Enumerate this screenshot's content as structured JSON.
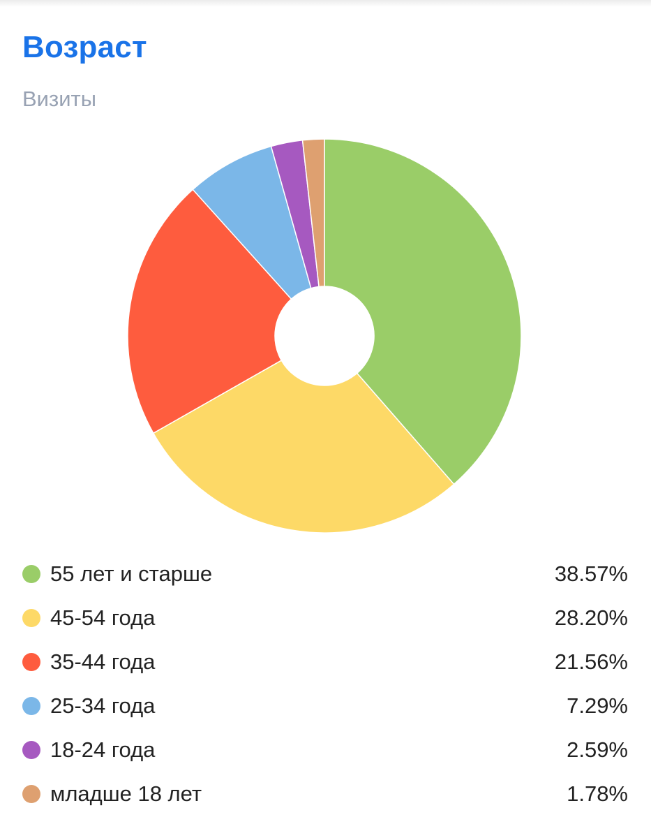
{
  "title": "Возраст",
  "subtitle": "Визиты",
  "chart_data": {
    "type": "pie",
    "title": "Возраст",
    "subtitle": "Визиты",
    "donut": true,
    "legend_position": "bottom",
    "slices": [
      {
        "label": "55 лет и старше",
        "value": 38.57,
        "display": "38.57%",
        "color": "#9acd68"
      },
      {
        "label": "45-54 года",
        "value": 28.2,
        "display": "28.20%",
        "color": "#fdd967"
      },
      {
        "label": "35-44 года",
        "value": 21.56,
        "display": "21.56%",
        "color": "#fe5c3e"
      },
      {
        "label": "25-34 года",
        "value": 7.29,
        "display": "7.29%",
        "color": "#7bb7e8"
      },
      {
        "label": "18-24 года",
        "value": 2.59,
        "display": "2.59%",
        "color": "#a659c0"
      },
      {
        "label": "младше 18 лет",
        "value": 1.78,
        "display": "1.78%",
        "color": "#dea070"
      }
    ]
  }
}
